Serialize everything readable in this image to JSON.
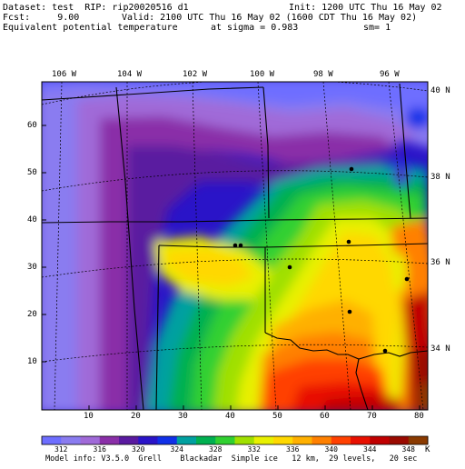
{
  "header": {
    "dataset": "Dataset: test  RIP: rip20020516 d1",
    "init": "Init: 1200 UTC Thu 16 May 02",
    "fcst": "Fcst:     9.00",
    "valid": "Valid: 2100 UTC Thu 16 May 02 (1600 CDT Thu 16 May 02)",
    "field": "Equivalent potential temperature",
    "sigma": "at sigma = 0.983",
    "sm": "sm= 1"
  },
  "map": {
    "lon_labels": [
      "106 W",
      "104 W",
      "102 W",
      "100 W",
      "98 W",
      "96 W"
    ],
    "lat_labels": [
      "40 N",
      "38 N",
      "36 N",
      "34 N"
    ],
    "y_ticks": [
      "60",
      "50",
      "40",
      "30",
      "20",
      "10"
    ],
    "x_ticks": [
      "10",
      "20",
      "30",
      "40",
      "50",
      "60",
      "70",
      "80"
    ]
  },
  "colorbar": {
    "labels": [
      "312",
      "316",
      "320",
      "324",
      "328",
      "332",
      "336",
      "340",
      "344",
      "348"
    ],
    "unit": "K",
    "colors": [
      "#6e6eff",
      "#8a7cf0",
      "#a06ad8",
      "#8a2fa8",
      "#5a1aa0",
      "#2a14c8",
      "#1030e8",
      "#00a0a0",
      "#00b050",
      "#30d030",
      "#a0e000",
      "#e8f000",
      "#ffd800",
      "#ffb000",
      "#ff8000",
      "#ff4000",
      "#e81000",
      "#c00000",
      "#9a0a00",
      "#8a3a00"
    ]
  },
  "footer": {
    "model_info": "Model info: V3.5.0  Grell    Blackadar  Simple ice   12 km,  29 levels,   20 sec"
  }
}
